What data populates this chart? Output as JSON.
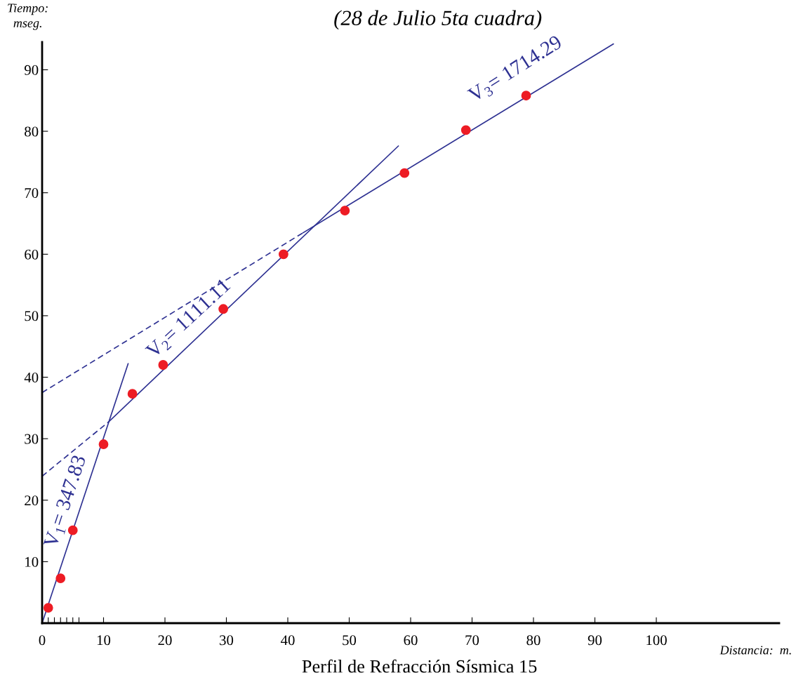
{
  "chart_data": {
    "type": "scatter",
    "title": "(28 de Julio 5ta cuadra)",
    "xlabel": "Distancia:  m.",
    "ylabel": "Tiempo:\nmseg.",
    "annotations": [
      "V$_{1}$= 347.83",
      "V$_{2}$= 1111.11",
      "V$_{3}$= 1714.29",
      "Perfil de Refracción Sísmica 15"
    ],
    "series": [
      {
        "color": "#ed1c24",
        "marker": "circle",
        "x": [
          1,
          3,
          5,
          10,
          14.7,
          19.7,
          29.5,
          39.3,
          49.3,
          59,
          69,
          78.8
        ],
        "values": [
          2.5,
          7.3,
          15.1,
          29.1,
          37.3,
          42,
          51.1,
          60,
          67.1,
          73.2,
          80.2,
          85.8
        ]
      },
      {
        "type": "line",
        "color": "#2e3192",
        "line_style": "solid",
        "marker": "none",
        "x": [
          0,
          14
        ],
        "values": [
          0,
          42.2
        ]
      },
      {
        "type": "line",
        "color": "#2e3192",
        "line_style": "dashed",
        "marker": "none",
        "x": [
          0,
          10.9
        ],
        "values": [
          23.9,
          32.8
        ]
      },
      {
        "type": "line",
        "color": "#2e3192",
        "line_style": "solid",
        "marker": "none",
        "x": [
          10.9,
          58
        ],
        "values": [
          32.8,
          77.6
        ]
      },
      {
        "type": "line",
        "color": "#2e3192",
        "line_style": "dashed",
        "marker": "none",
        "x": [
          0,
          42.5
        ],
        "values": [
          37.5,
          63.5
        ]
      },
      {
        "type": "line",
        "color": "#2e3192",
        "line_style": "solid",
        "marker": "none",
        "x": [
          42.5,
          93
        ],
        "values": [
          63.5,
          94.2
        ]
      }
    ],
    "xlim": [
      0,
      120
    ],
    "ylim": [
      0,
      94.5
    ],
    "xticks": [
      0,
      {
        "value": 1,
        "label": null
      },
      {
        "value": 2,
        "label": null
      },
      {
        "value": 3,
        "label": null
      },
      {
        "value": 4,
        "label": null
      },
      {
        "value": 5,
        "label": null
      },
      {
        "value": 6,
        "label": null
      },
      10,
      20,
      30,
      40,
      50,
      60,
      70,
      80,
      90,
      100
    ],
    "yticks": [
      10,
      20,
      30,
      40,
      50,
      60,
      70,
      80,
      90
    ],
    "grid": false,
    "legend": false
  }
}
